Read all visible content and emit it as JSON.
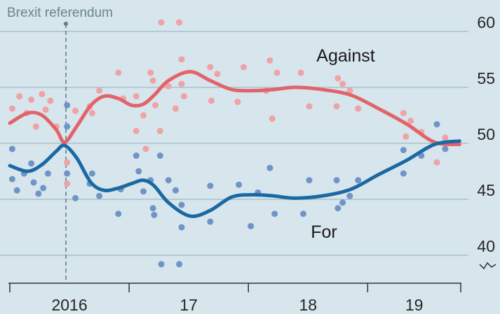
{
  "chart_data": {
    "type": "line",
    "annotations": [
      {
        "text": "Brexit referendum",
        "x": 2016.47
      }
    ],
    "xlim": [
      2016,
      2019.78
    ],
    "xticks": [
      {
        "value": 2016,
        "label": "2016"
      },
      {
        "value": 2017,
        "label": "17"
      },
      {
        "value": 2018,
        "label": "18"
      },
      {
        "value": 2019,
        "label": "19"
      }
    ],
    "ylim": [
      37.5,
      62.8
    ],
    "yticks": [
      40,
      45,
      50,
      55,
      60
    ],
    "grid": true,
    "series": [
      {
        "name": "Against",
        "color": "#e2636a",
        "x": [
          2016,
          2016.15,
          2016.27,
          2016.39,
          2016.46,
          2016.56,
          2016.68,
          2016.79,
          2016.91,
          2017.02,
          2017.12,
          2017.21,
          2017.33,
          2017.51,
          2017.68,
          2017.86,
          2018.04,
          2018.21,
          2018.39,
          2018.62,
          2018.86,
          2019.09,
          2019.33,
          2019.56,
          2019.77
        ],
        "values": [
          51.8,
          52.7,
          52.5,
          51.2,
          50.1,
          51.5,
          53.4,
          54.2,
          54.0,
          53.4,
          53.5,
          54.3,
          55.6,
          56.4,
          55.6,
          54.8,
          54.7,
          54.8,
          55.0,
          54.8,
          54.3,
          53.1,
          51.7,
          50.1,
          49.9
        ]
      },
      {
        "name": "For",
        "color": "#1b69a3",
        "x": [
          2016,
          2016.15,
          2016.27,
          2016.39,
          2016.46,
          2016.56,
          2016.68,
          2016.79,
          2016.91,
          2017.02,
          2017.12,
          2017.21,
          2017.33,
          2017.51,
          2017.68,
          2017.86,
          2018.04,
          2018.21,
          2018.39,
          2018.62,
          2018.86,
          2019.09,
          2019.33,
          2019.56,
          2019.77
        ],
        "values": [
          48.0,
          47.5,
          48.1,
          49.3,
          49.8,
          48.7,
          46.5,
          45.8,
          46.0,
          46.4,
          46.7,
          46.2,
          44.7,
          43.5,
          44.0,
          45.2,
          45.4,
          45.3,
          45.1,
          45.3,
          45.9,
          47.2,
          48.5,
          49.9,
          50.2
        ]
      }
    ],
    "scatter": [
      {
        "color": "#eea3a5",
        "x": [
          2016.02,
          2016.08,
          2016.14,
          2016.18,
          2016.22,
          2016.27,
          2016.3,
          2016.34,
          2016.39,
          2016.48,
          2016.48,
          2016.55,
          2016.67,
          2016.69,
          2016.75,
          2016.91,
          2016.95,
          2017.06,
          2017.06,
          2017.12,
          2017.14,
          2017.18,
          2017.2,
          2017.22,
          2017.26,
          2017.27,
          2017.33,
          2017.39,
          2017.42,
          2017.44,
          2017.44,
          2017.46,
          2017.68,
          2017.69,
          2017.74,
          2017.91,
          2017.96,
          2018.15,
          2018.18,
          2018.2,
          2018.24,
          2018.44,
          2018.51,
          2018.74,
          2018.75,
          2018.79,
          2018.85,
          2018.92,
          2019.3,
          2019.32,
          2019.36,
          2019.45,
          2019.58,
          2019.65
        ],
        "values": [
          53.1,
          54.2,
          52.7,
          53.9,
          51.5,
          54.4,
          53.0,
          53.8,
          51.5,
          48.3,
          46.4,
          52.9,
          53.3,
          52.7,
          54.7,
          56.3,
          54.0,
          54.2,
          51.1,
          52.5,
          49.5,
          56.3,
          55.6,
          53.4,
          51.1,
          60.8,
          55.1,
          53.1,
          60.8,
          57.5,
          55.3,
          54.2,
          56.8,
          53.8,
          56.2,
          53.7,
          56.8,
          54.7,
          57.4,
          52.2,
          56.3,
          56.3,
          53.3,
          53.3,
          55.8,
          55.3,
          54.7,
          53.1,
          52.7,
          50.6,
          52.0,
          51.0,
          48.3,
          50.5
        ]
      },
      {
        "color": "#6f95c6",
        "x": [
          2016.02,
          2016.02,
          2016.06,
          2016.12,
          2016.18,
          2016.2,
          2016.24,
          2016.28,
          2016.32,
          2016.48,
          2016.48,
          2016.48,
          2016.55,
          2016.67,
          2016.69,
          2016.75,
          2016.91,
          2016.93,
          2017.06,
          2017.08,
          2017.12,
          2017.18,
          2017.2,
          2017.21,
          2017.26,
          2017.27,
          2017.33,
          2017.39,
          2017.42,
          2017.44,
          2017.44,
          2017.68,
          2017.68,
          2017.92,
          2018.02,
          2018.08,
          2018.18,
          2018.22,
          2018.46,
          2018.51,
          2018.74,
          2018.75,
          2018.79,
          2018.85,
          2018.92,
          2019.3,
          2019.3,
          2019.45,
          2019.58,
          2019.65
        ],
        "values": [
          49.5,
          46.8,
          45.8,
          47.3,
          48.2,
          46.5,
          45.5,
          46.0,
          47.3,
          53.4,
          51.5,
          47.3,
          45.1,
          46.4,
          47.3,
          45.3,
          43.7,
          45.9,
          48.9,
          47.5,
          45.7,
          46.7,
          44.2,
          43.6,
          48.9,
          39.2,
          46.7,
          45.8,
          39.2,
          44.5,
          42.5,
          46.2,
          43.0,
          46.3,
          42.6,
          45.6,
          47.8,
          43.7,
          43.7,
          46.7,
          46.7,
          44.2,
          44.7,
          45.3,
          46.7,
          49.4,
          47.3,
          48.9,
          51.7,
          49.5
        ]
      }
    ]
  }
}
